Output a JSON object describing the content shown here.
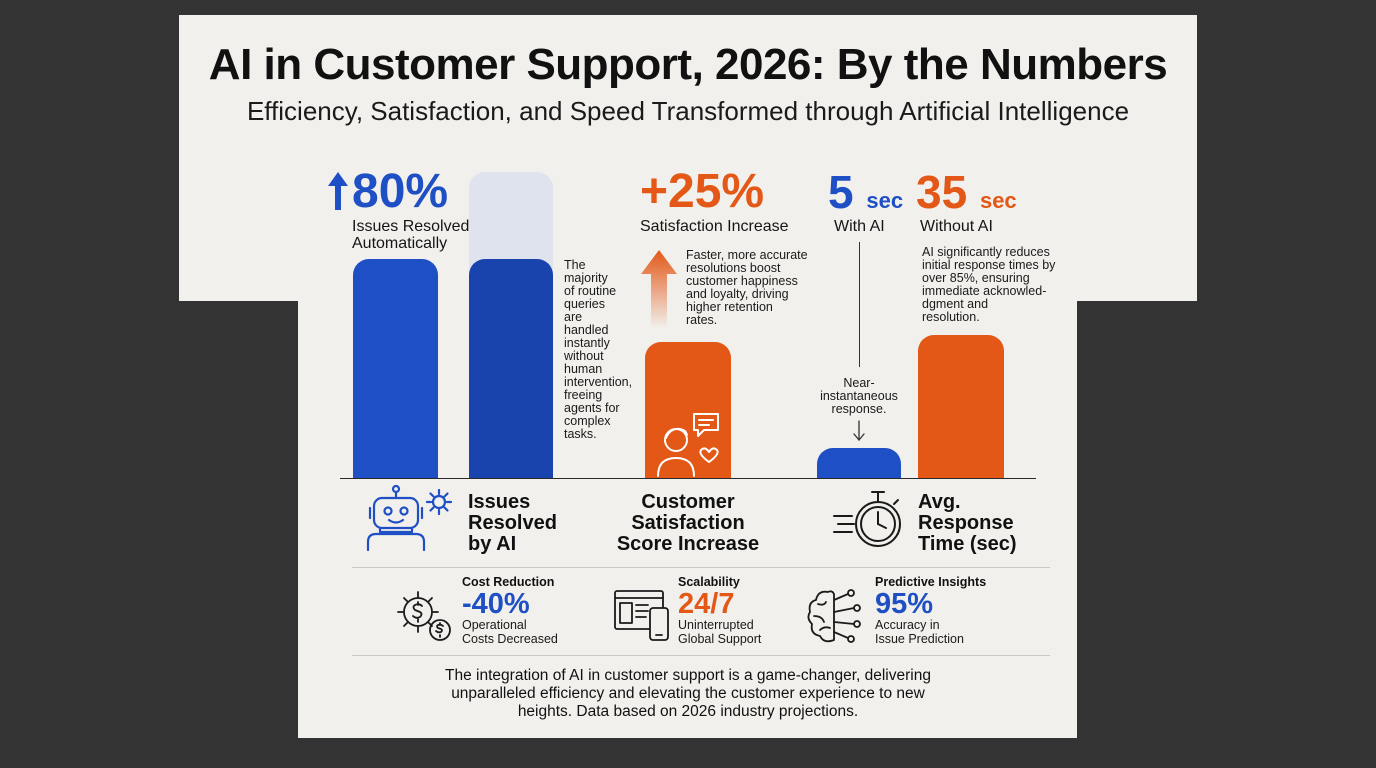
{
  "title": "AI in Customer Support, 2026: By the Numbers",
  "subtitle": "Efficiency, Satisfaction, and Speed Transformed through Artificial Intelligence",
  "colors": {
    "blue": "#1f4fc4",
    "dark_blue": "#1a44ad",
    "orange": "#e35717",
    "panel": "#f1f0ec",
    "background": "#333333"
  },
  "chart_data": {
    "type": "bar",
    "groups": [
      {
        "name": "Issues Resolved by AI",
        "headline_value": "80%",
        "headline_label": "Issues Resolved Automatically",
        "note": "The majority of routine queries are handled instantly without human intervention, freeing agents for complex tasks.",
        "icon": "robot-gear-icon",
        "values": [
          80,
          80
        ]
      },
      {
        "name": "Customer Satisfaction Score Increase",
        "headline_value": "+25%",
        "headline_label": "Satisfaction Increase",
        "note": "Faster, more accurate resolutions boost customer happiness and loyalty, driving higher retention rates.",
        "icon": "customer-chat-heart-icon",
        "values": [
          25
        ]
      },
      {
        "name": "Avg. Response Time (sec)",
        "with_ai": {
          "value": 5,
          "unit": "sec",
          "label": "With AI",
          "note": "Near-instantaneous response."
        },
        "without_ai": {
          "value": 35,
          "unit": "sec",
          "label": "Without AI",
          "note": "AI significantly reduces initial response times by over 85%, ensuring immediate acknowled-dgment and resolution."
        },
        "icon": "stopwatch-icon",
        "values": [
          5,
          35
        ]
      }
    ]
  },
  "category_labels": {
    "issues": [
      "Issues",
      "Resolved",
      "by AI"
    ],
    "satisfaction": [
      "Customer",
      "Satisfaction",
      "Score Increase"
    ],
    "response": [
      "Avg.",
      "Response",
      "Time (sec)"
    ]
  },
  "headlines": {
    "issues_value": "80%",
    "issues_label": [
      "Issues Resolved",
      "Automatically"
    ],
    "issues_note": [
      "The",
      "majority",
      "of routine",
      "queries",
      "are",
      "handled",
      "instantly",
      "without",
      "human",
      "intervention,",
      "freeing",
      "agents for",
      "complex",
      "tasks."
    ],
    "satisfaction_value": "+25%",
    "satisfaction_label": "Satisfaction Increase",
    "satisfaction_note": [
      "Faster, more accurate",
      "resolutions boost",
      "customer happiness",
      "and loyalty, driving",
      "higher retention",
      "rates."
    ],
    "with_ai_value": "5",
    "with_ai_unit": "sec",
    "with_ai_label": "With AI",
    "with_ai_note": [
      "Near-",
      "instantaneous",
      "response."
    ],
    "without_ai_value": "35",
    "without_ai_unit": "sec",
    "without_ai_label": "Without AI",
    "without_ai_note": [
      "AI significantly reduces",
      "initial response times by",
      "over 85%, ensuring",
      "immediate acknowled-",
      "dgment and",
      "resolution."
    ]
  },
  "stats": [
    {
      "heading": "Cost Reduction",
      "value": "-40%",
      "desc": [
        "Operational",
        "Costs Decreased"
      ],
      "icon": "cost-gears-dollar-icon",
      "color": "#1f4fc4"
    },
    {
      "heading": "Scalability",
      "value": "24/7",
      "desc": [
        "Uninterrupted",
        "Global Support"
      ],
      "icon": "devices-icon",
      "color": "#e35717"
    },
    {
      "heading": "Predictive Insights",
      "value": "95%",
      "desc": [
        "Accuracy in",
        "Issue Prediction"
      ],
      "icon": "brain-network-icon",
      "color": "#1f4fc4"
    }
  ],
  "footer": [
    "The integration of AI in customer support is a game-changer, delivering",
    "unparalleled efficiency and elevating the customer experience to new",
    "heights. Data based on 2026 industry projections."
  ]
}
